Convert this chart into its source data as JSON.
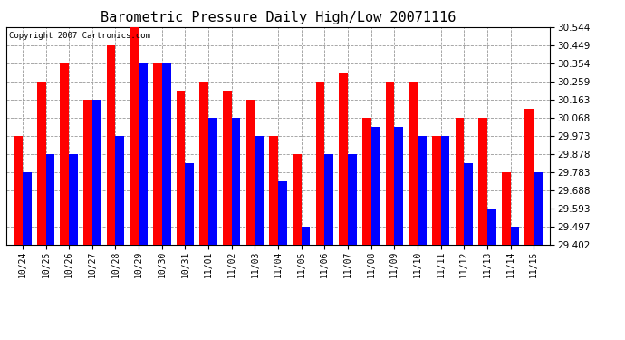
{
  "title": "Barometric Pressure Daily High/Low 20071116",
  "copyright": "Copyright 2007 Cartronics.com",
  "categories": [
    "10/24",
    "10/25",
    "10/26",
    "10/27",
    "10/28",
    "10/29",
    "10/30",
    "10/31",
    "11/01",
    "11/02",
    "11/03",
    "11/04",
    "11/05",
    "11/06",
    "11/07",
    "11/08",
    "11/09",
    "11/10",
    "11/11",
    "11/12",
    "11/13",
    "11/14",
    "11/15"
  ],
  "highs": [
    29.973,
    30.259,
    30.354,
    30.163,
    30.449,
    30.544,
    30.354,
    30.21,
    30.259,
    30.21,
    30.163,
    29.973,
    29.878,
    30.259,
    30.306,
    30.068,
    30.259,
    30.259,
    29.973,
    30.068,
    30.068,
    29.783,
    30.115
  ],
  "lows": [
    29.783,
    29.878,
    29.878,
    30.163,
    29.973,
    30.354,
    30.354,
    29.83,
    30.068,
    30.068,
    29.973,
    29.735,
    29.497,
    29.878,
    29.878,
    30.02,
    30.02,
    29.973,
    29.973,
    29.83,
    29.593,
    29.497,
    29.783
  ],
  "high_color": "#ff0000",
  "low_color": "#0000ff",
  "bg_color": "#ffffff",
  "grid_color": "#999999",
  "yticks": [
    29.402,
    29.497,
    29.593,
    29.688,
    29.783,
    29.878,
    29.973,
    30.068,
    30.163,
    30.259,
    30.354,
    30.449,
    30.544
  ],
  "ymin": 29.402,
  "ymax": 30.544,
  "bar_width": 0.38
}
